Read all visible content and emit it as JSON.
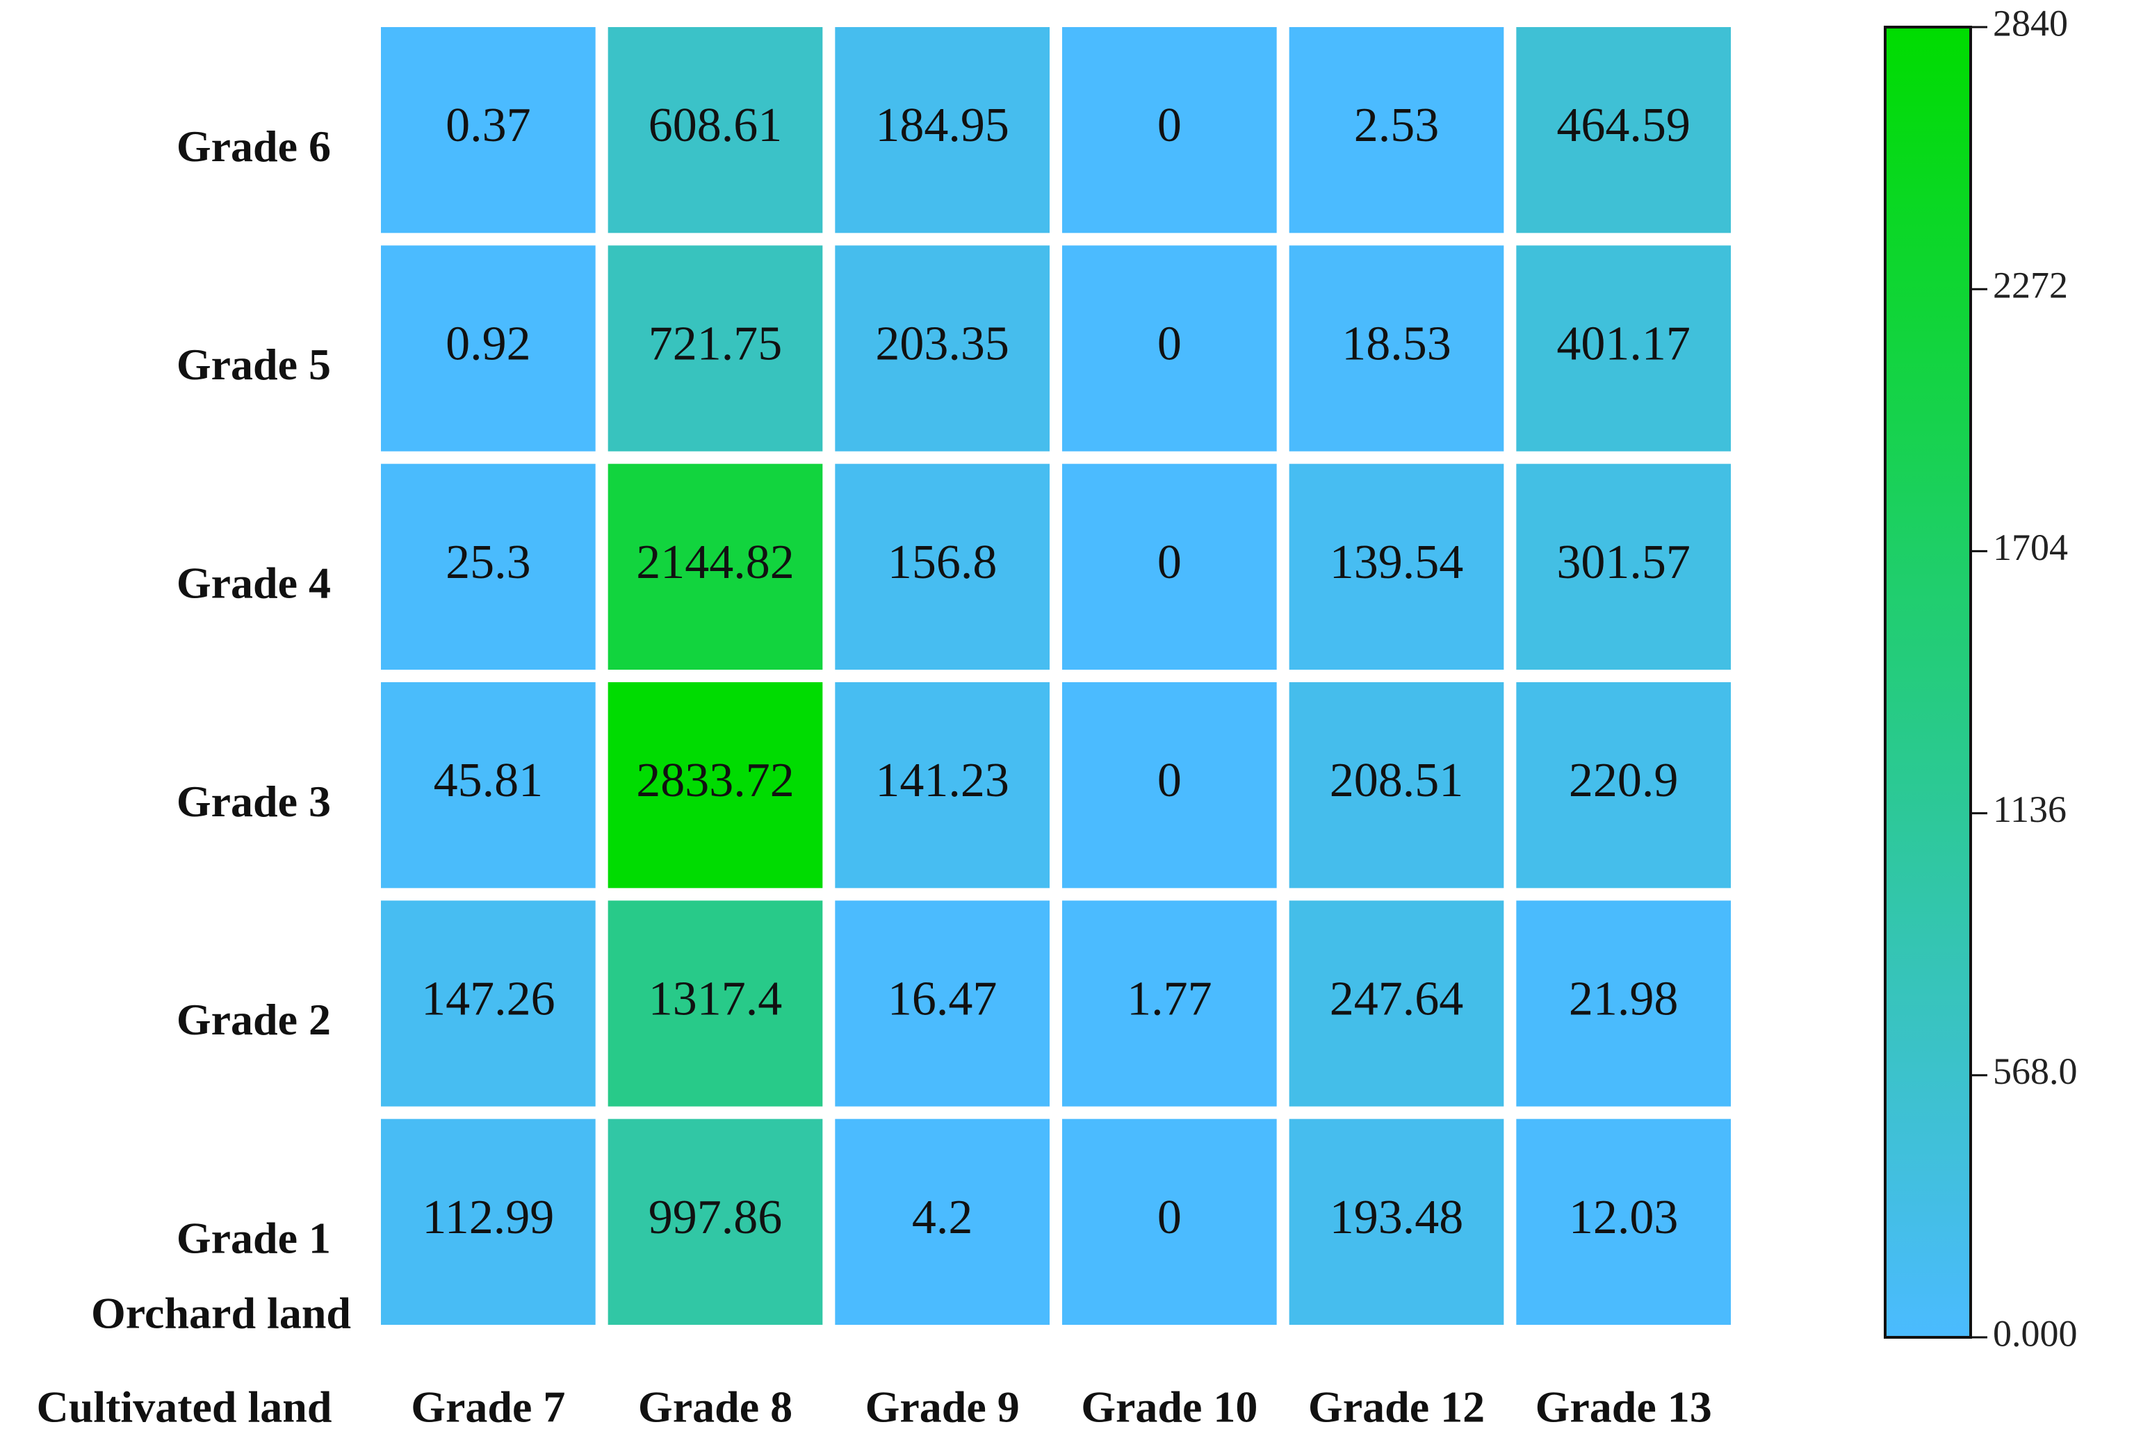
{
  "chart_data": {
    "type": "heatmap",
    "xlabel": "Cultivated land",
    "ylabel": "Orchard land",
    "x_categories": [
      "Grade 7",
      "Grade 8",
      "Grade 9",
      "Grade 10",
      "Grade 12",
      "Grade 13"
    ],
    "y_categories": [
      "Grade 6",
      "Grade 5",
      "Grade 4",
      "Grade 3",
      "Grade 2",
      "Grade 1"
    ],
    "values": [
      [
        0.37,
        608.61,
        184.95,
        0,
        2.53,
        464.59
      ],
      [
        0.92,
        721.75,
        203.35,
        0,
        18.53,
        401.17
      ],
      [
        25.3,
        2144.82,
        156.8,
        0,
        139.54,
        301.57
      ],
      [
        45.81,
        2833.72,
        141.23,
        0,
        208.51,
        220.9
      ],
      [
        147.26,
        1317.4,
        16.47,
        1.77,
        247.64,
        21.98
      ],
      [
        112.99,
        997.86,
        4.2,
        0,
        193.48,
        12.03
      ]
    ],
    "colors": {
      "low": "#4bbbff",
      "high": "#00dc00"
    },
    "clim": [
      0,
      2840
    ],
    "cticks": [
      {
        "value": 0,
        "label": "0.000"
      },
      {
        "value": 568,
        "label": "568.0"
      },
      1136,
      1704,
      2272,
      2840
    ]
  }
}
